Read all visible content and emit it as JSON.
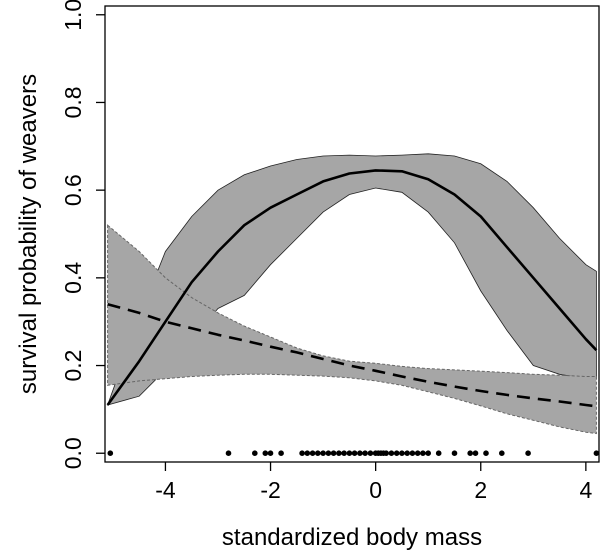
{
  "chart_data": {
    "type": "line",
    "xlabel": "standardized body mass",
    "ylabel": "survival probability of weavers",
    "xlim": [
      -5.15,
      4.25
    ],
    "ylim": [
      -0.02,
      1.02
    ],
    "x_ticks": [
      -4,
      -2,
      0,
      2,
      4
    ],
    "y_ticks": [
      0.0,
      0.2,
      0.4,
      0.6,
      0.8,
      1.0
    ],
    "x_tick_labels": [
      "-4",
      "-2",
      "0",
      "2",
      "4"
    ],
    "y_tick_labels": [
      "0.0",
      "0.2",
      "0.4",
      "0.6",
      "0.8",
      "1.0"
    ],
    "grid": false,
    "band_fill": "#a6a6a6",
    "series": [
      {
        "style": "solid",
        "x": [
          -5.1,
          -4.5,
          -4.0,
          -3.5,
          -3.0,
          -2.5,
          -2.0,
          -1.5,
          -1.0,
          -0.5,
          0.0,
          0.5,
          1.0,
          1.5,
          2.0,
          2.5,
          3.0,
          3.5,
          4.0,
          4.2
        ],
        "values": [
          0.11,
          0.21,
          0.3,
          0.39,
          0.46,
          0.52,
          0.56,
          0.59,
          0.62,
          0.638,
          0.645,
          0.643,
          0.625,
          0.59,
          0.54,
          0.47,
          0.4,
          0.33,
          0.26,
          0.235
        ],
        "band_upper": [
          0.11,
          0.31,
          0.46,
          0.54,
          0.6,
          0.635,
          0.655,
          0.67,
          0.678,
          0.68,
          0.678,
          0.68,
          0.683,
          0.678,
          0.66,
          0.62,
          0.56,
          0.49,
          0.43,
          0.415
        ],
        "band_lower": [
          0.11,
          0.13,
          0.19,
          0.26,
          0.33,
          0.36,
          0.43,
          0.49,
          0.55,
          0.59,
          0.605,
          0.595,
          0.55,
          0.48,
          0.37,
          0.28,
          0.2,
          0.18,
          0.17,
          0.17
        ]
      },
      {
        "style": "dashed",
        "x": [
          -5.1,
          -4.5,
          -4.0,
          -3.5,
          -3.0,
          -2.5,
          -2.0,
          -1.5,
          -1.0,
          -0.5,
          0.0,
          0.5,
          1.0,
          1.5,
          2.0,
          2.5,
          3.0,
          3.5,
          4.0,
          4.2
        ],
        "values": [
          0.34,
          0.32,
          0.3,
          0.285,
          0.27,
          0.257,
          0.243,
          0.23,
          0.215,
          0.2,
          0.188,
          0.175,
          0.163,
          0.152,
          0.142,
          0.133,
          0.125,
          0.118,
          0.11,
          0.107
        ],
        "band_upper": [
          0.52,
          0.46,
          0.4,
          0.355,
          0.32,
          0.29,
          0.265,
          0.24,
          0.222,
          0.21,
          0.205,
          0.198,
          0.193,
          0.19,
          0.187,
          0.184,
          0.18,
          0.178,
          0.175,
          0.175
        ],
        "band_lower": [
          0.155,
          0.165,
          0.17,
          0.175,
          0.178,
          0.18,
          0.18,
          0.178,
          0.176,
          0.172,
          0.165,
          0.155,
          0.14,
          0.125,
          0.108,
          0.09,
          0.075,
          0.06,
          0.048,
          0.045
        ]
      }
    ],
    "observations": {
      "type": "rug",
      "y": 0,
      "x": [
        -5.05,
        -2.8,
        -2.3,
        -2.1,
        -2.0,
        -1.8,
        -1.4,
        -1.3,
        -1.2,
        -1.1,
        -1.0,
        -0.9,
        -0.8,
        -0.7,
        -0.6,
        -0.5,
        -0.4,
        -0.3,
        -0.2,
        -0.1,
        0.0,
        0.05,
        0.1,
        0.15,
        0.2,
        0.3,
        0.4,
        0.5,
        0.6,
        0.7,
        0.8,
        0.9,
        1.0,
        1.2,
        1.5,
        1.8,
        1.9,
        2.1,
        2.4,
        2.9,
        4.2
      ]
    }
  }
}
